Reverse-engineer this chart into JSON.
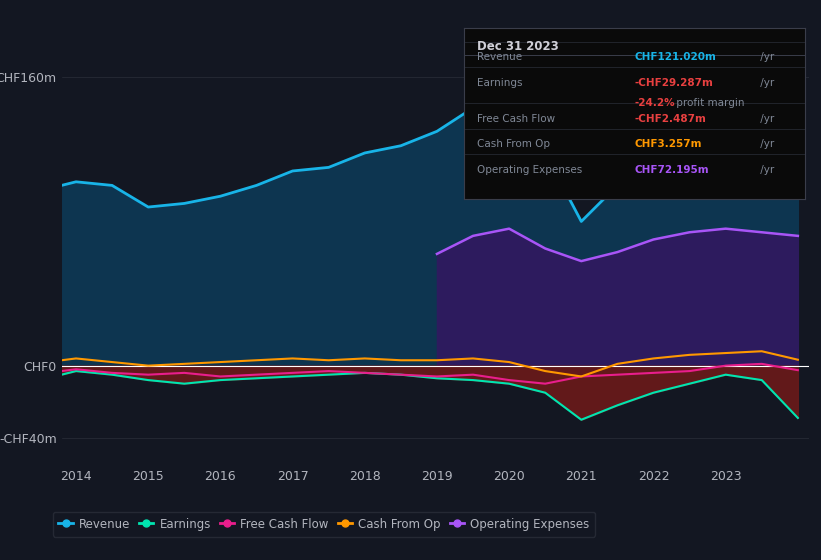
{
  "background_color": "#131722",
  "plot_bg_color": "#131722",
  "grid_color": "#2a2e39",
  "text_color": "#b2b5be",
  "ylabel_top": "CHF160m",
  "ylabel_mid": "CHF0",
  "ylabel_bot": "-CHF40m",
  "years": [
    2013.8,
    2014,
    2014.5,
    2015,
    2015.5,
    2016,
    2016.5,
    2017,
    2017.5,
    2018,
    2018.5,
    2019,
    2019.5,
    2020,
    2020.5,
    2021,
    2021.5,
    2022,
    2022.5,
    2023,
    2023.5,
    2024.0
  ],
  "revenue": [
    100,
    102,
    100,
    88,
    90,
    94,
    100,
    108,
    110,
    118,
    122,
    130,
    143,
    150,
    118,
    80,
    100,
    128,
    138,
    143,
    132,
    121
  ],
  "earnings": [
    -5,
    -3,
    -5,
    -8,
    -10,
    -8,
    -7,
    -6,
    -5,
    -4,
    -5,
    -7,
    -8,
    -10,
    -15,
    -30,
    -22,
    -15,
    -10,
    -5,
    -8,
    -29
  ],
  "free_cash_flow": [
    -3,
    -2,
    -4,
    -5,
    -4,
    -6,
    -5,
    -4,
    -3,
    -4,
    -5,
    -6,
    -5,
    -8,
    -10,
    -6,
    -5,
    -4,
    -3,
    0,
    1,
    -2.5
  ],
  "cash_from_op": [
    3,
    4,
    2,
    0,
    1,
    2,
    3,
    4,
    3,
    4,
    3,
    3,
    4,
    2,
    -3,
    -6,
    1,
    4,
    6,
    7,
    8,
    3.3
  ],
  "op_expenses_x": [
    2019.0,
    2019.5,
    2020,
    2020.5,
    2021,
    2021.5,
    2022,
    2022.5,
    2023,
    2023.5,
    2024.0
  ],
  "op_expenses": [
    62,
    72,
    76,
    65,
    58,
    63,
    70,
    74,
    76,
    74,
    72
  ],
  "revenue_color": "#18b4e8",
  "revenue_fill": "#0d3550",
  "earnings_color": "#00e5b0",
  "fcf_color": "#e91e8c",
  "cash_color": "#ff9800",
  "op_expenses_color": "#a855f7",
  "op_expenses_fill": "#2d1b5e",
  "earnings_fill": "#6b1a1a",
  "xlim": [
    2013.8,
    2024.15
  ],
  "ylim": [
    -55,
    178
  ],
  "xticks": [
    2014,
    2015,
    2016,
    2017,
    2018,
    2019,
    2020,
    2021,
    2022,
    2023
  ],
  "chf0_y": 0,
  "chf160_y": 160,
  "chfneg40_y": -40,
  "tooltip": {
    "date": "Dec 31 2023",
    "revenue_label": "Revenue",
    "revenue_val": "CHF121.020m",
    "revenue_color": "#18b4e8",
    "earnings_label": "Earnings",
    "earnings_val": "-CHF29.287m",
    "earnings_color": "#e84040",
    "margin_val": "-24.2%",
    "margin_color": "#e84040",
    "fcf_label": "Free Cash Flow",
    "fcf_val": "-CHF2.487m",
    "fcf_color": "#e84040",
    "cash_label": "Cash From Op",
    "cash_val": "CHF3.257m",
    "cash_color": "#ff9800",
    "opex_label": "Operating Expenses",
    "opex_val": "CHF72.195m",
    "opex_color": "#a855f7",
    "yr": " /yr"
  },
  "legend_items": [
    {
      "label": "Revenue",
      "color": "#18b4e8"
    },
    {
      "label": "Earnings",
      "color": "#00e5b0"
    },
    {
      "label": "Free Cash Flow",
      "color": "#e91e8c"
    },
    {
      "label": "Cash From Op",
      "color": "#ff9800"
    },
    {
      "label": "Operating Expenses",
      "color": "#a855f7"
    }
  ]
}
